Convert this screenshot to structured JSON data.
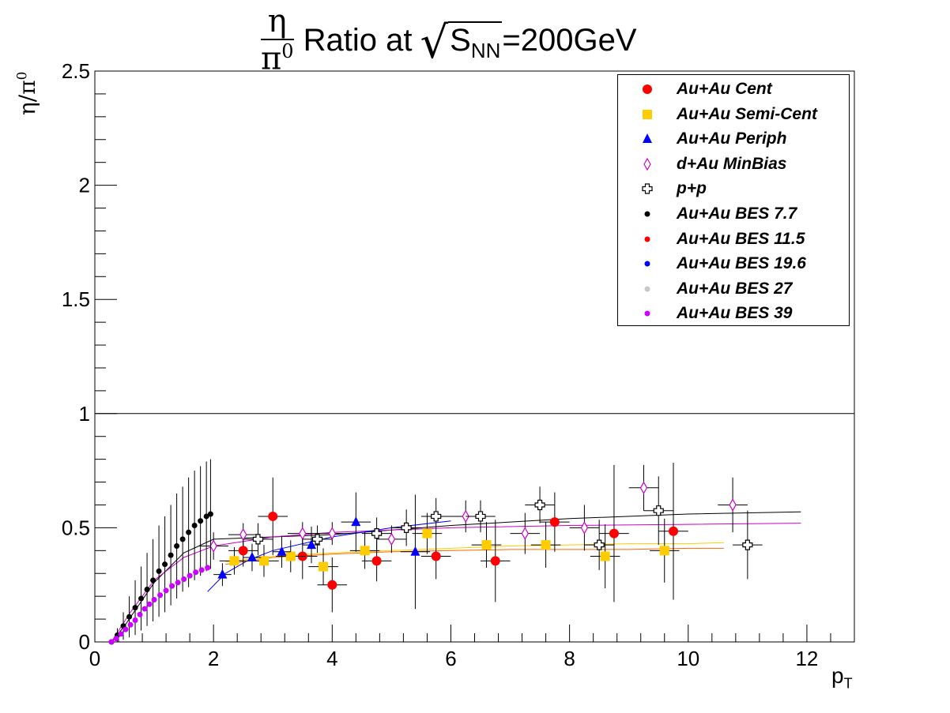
{
  "title": {
    "numerator": "η",
    "denominator": "π",
    "denominator_sup": "0",
    "text": "Ratio at",
    "radicand": "S",
    "radicand_sub": "NN",
    "energy": "=200GeV"
  },
  "axes": {
    "ylabel": "η/π",
    "ylabel_sup": "0",
    "xlabel": "p",
    "xlabel_sub": "T"
  },
  "chart_data": {
    "type": "scatter",
    "title": "η/π⁰ Ratio at √S_NN=200GeV",
    "xlabel": "p_T",
    "ylabel": "η/π⁰",
    "xlim": [
      0,
      12.8
    ],
    "ylim": [
      0,
      2.5
    ],
    "x_ticks": [
      0,
      2,
      4,
      6,
      8,
      10,
      12
    ],
    "y_ticks": [
      0,
      0.5,
      1,
      1.5,
      2,
      2.5
    ],
    "y_tick_labels": [
      "0",
      "0.5",
      "1",
      "1.5",
      "2",
      "2.5"
    ],
    "grid": false,
    "legend_position": "top-right",
    "reference_line": {
      "y": 1
    },
    "series": [
      {
        "name": "Au+Au Cent",
        "marker": "circle",
        "color": "#ff0000",
        "points": [
          {
            "x": 2.5,
            "y": 0.4,
            "xerr": 0.25,
            "yerr": 0.07
          },
          {
            "x": 3.0,
            "y": 0.55,
            "xerr": 0.25,
            "yerr": 0.17
          },
          {
            "x": 3.5,
            "y": 0.375,
            "xerr": 0.25,
            "yerr": 0.1
          },
          {
            "x": 4.0,
            "y": 0.25,
            "xerr": 0.25,
            "yerr": 0.12
          },
          {
            "x": 4.75,
            "y": 0.355,
            "xerr": 0.25,
            "yerr": 0.09
          },
          {
            "x": 5.75,
            "y": 0.375,
            "xerr": 0.25,
            "yerr": 0.1
          },
          {
            "x": 6.75,
            "y": 0.355,
            "xerr": 0.25,
            "yerr": 0.18
          },
          {
            "x": 7.75,
            "y": 0.525,
            "xerr": 0.25,
            "yerr": 0.13
          },
          {
            "x": 8.75,
            "y": 0.475,
            "xerr": 0.25,
            "yerr": 0.3
          },
          {
            "x": 9.75,
            "y": 0.485,
            "xerr": 0.25,
            "yerr": 0.3
          }
        ]
      },
      {
        "name": "Au+Au Semi-Cent",
        "marker": "square",
        "color": "#ffcc00",
        "points": [
          {
            "x": 2.35,
            "y": 0.355,
            "xerr": 0.25,
            "yerr": 0.06
          },
          {
            "x": 2.85,
            "y": 0.355,
            "xerr": 0.25,
            "yerr": 0.07
          },
          {
            "x": 3.3,
            "y": 0.375,
            "xerr": 0.25,
            "yerr": 0.07
          },
          {
            "x": 3.85,
            "y": 0.33,
            "xerr": 0.25,
            "yerr": 0.08
          },
          {
            "x": 4.55,
            "y": 0.4,
            "xerr": 0.25,
            "yerr": 0.08
          },
          {
            "x": 5.6,
            "y": 0.475,
            "xerr": 0.25,
            "yerr": 0.09
          },
          {
            "x": 6.6,
            "y": 0.425,
            "xerr": 0.25,
            "yerr": 0.1
          },
          {
            "x": 7.6,
            "y": 0.425,
            "xerr": 0.25,
            "yerr": 0.1
          },
          {
            "x": 8.6,
            "y": 0.375,
            "xerr": 0.25,
            "yerr": 0.14
          },
          {
            "x": 9.6,
            "y": 0.4,
            "xerr": 0.25,
            "yerr": 0.14
          }
        ]
      },
      {
        "name": "Au+Au Periph",
        "marker": "triangle",
        "color": "#0000ff",
        "points": [
          {
            "x": 2.15,
            "y": 0.295,
            "xerr": 0.15,
            "yerr": 0.05
          },
          {
            "x": 2.65,
            "y": 0.37,
            "xerr": 0.15,
            "yerr": 0.06
          },
          {
            "x": 3.15,
            "y": 0.395,
            "xerr": 0.15,
            "yerr": 0.07
          },
          {
            "x": 3.65,
            "y": 0.425,
            "xerr": 0.15,
            "yerr": 0.08
          },
          {
            "x": 4.4,
            "y": 0.525,
            "xerr": 0.25,
            "yerr": 0.13
          },
          {
            "x": 5.4,
            "y": 0.395,
            "xerr": 0.25,
            "yerr": 0.25
          }
        ]
      },
      {
        "name": "d+Au MinBias",
        "marker": "open-diamond",
        "color": "#cc00cc",
        "points": [
          {
            "x": 2.0,
            "y": 0.42,
            "xerr": 0.25,
            "yerr": 0.06
          },
          {
            "x": 2.5,
            "y": 0.47,
            "xerr": 0.25,
            "yerr": 0.05
          },
          {
            "x": 3.5,
            "y": 0.475,
            "xerr": 0.25,
            "yerr": 0.05
          },
          {
            "x": 4.0,
            "y": 0.475,
            "xerr": 0.25,
            "yerr": 0.05
          },
          {
            "x": 5.0,
            "y": 0.45,
            "xerr": 0.25,
            "yerr": 0.06
          },
          {
            "x": 6.25,
            "y": 0.55,
            "xerr": 0.25,
            "yerr": 0.07
          },
          {
            "x": 7.25,
            "y": 0.475,
            "xerr": 0.25,
            "yerr": 0.09
          },
          {
            "x": 8.25,
            "y": 0.5,
            "xerr": 0.25,
            "yerr": 0.1
          },
          {
            "x": 9.25,
            "y": 0.675,
            "xerr": 0.25,
            "yerr": 0.1
          },
          {
            "x": 10.75,
            "y": 0.6,
            "xerr": 0.25,
            "yerr": 0.12
          }
        ]
      },
      {
        "name": "p+p",
        "marker": "open-cross",
        "color": "#000000",
        "points": [
          {
            "x": 2.75,
            "y": 0.45,
            "xerr": 0.25,
            "yerr": 0.07
          },
          {
            "x": 3.75,
            "y": 0.45,
            "xerr": 0.25,
            "yerr": 0.06
          },
          {
            "x": 4.75,
            "y": 0.475,
            "xerr": 0.25,
            "yerr": 0.07
          },
          {
            "x": 5.25,
            "y": 0.5,
            "xerr": 0.25,
            "yerr": 0.08
          },
          {
            "x": 5.75,
            "y": 0.55,
            "xerr": 0.25,
            "yerr": 0.08
          },
          {
            "x": 6.5,
            "y": 0.55,
            "xerr": 0.25,
            "yerr": 0.07
          },
          {
            "x": 7.5,
            "y": 0.6,
            "xerr": 0.25,
            "yerr": 0.08
          },
          {
            "x": 8.5,
            "y": 0.425,
            "xerr": 0.25,
            "yerr": 0.11
          },
          {
            "x": 9.5,
            "y": 0.575,
            "xerr": 0.25,
            "yerr": 0.15
          },
          {
            "x": 11.0,
            "y": 0.425,
            "xerr": 0.25,
            "yerr": 0.15
          }
        ]
      },
      {
        "name": "Au+Au BES 7.7",
        "marker": "small-circle",
        "color": "#000000",
        "points": [
          {
            "x": 0.28,
            "y": 0.0,
            "yerr": 0.01
          },
          {
            "x": 0.38,
            "y": 0.03,
            "yerr": 0.03
          },
          {
            "x": 0.48,
            "y": 0.07,
            "yerr": 0.06
          },
          {
            "x": 0.58,
            "y": 0.11,
            "yerr": 0.09
          },
          {
            "x": 0.68,
            "y": 0.15,
            "yerr": 0.12
          },
          {
            "x": 0.78,
            "y": 0.19,
            "yerr": 0.14
          },
          {
            "x": 0.88,
            "y": 0.23,
            "yerr": 0.16
          },
          {
            "x": 0.98,
            "y": 0.27,
            "yerr": 0.18
          },
          {
            "x": 1.08,
            "y": 0.31,
            "yerr": 0.2
          },
          {
            "x": 1.18,
            "y": 0.34,
            "yerr": 0.21
          },
          {
            "x": 1.28,
            "y": 0.38,
            "yerr": 0.22
          },
          {
            "x": 1.38,
            "y": 0.42,
            "yerr": 0.23
          },
          {
            "x": 1.48,
            "y": 0.45,
            "yerr": 0.23
          },
          {
            "x": 1.58,
            "y": 0.48,
            "yerr": 0.24
          },
          {
            "x": 1.68,
            "y": 0.51,
            "yerr": 0.24
          },
          {
            "x": 1.78,
            "y": 0.53,
            "yerr": 0.24
          },
          {
            "x": 1.88,
            "y": 0.55,
            "yerr": 0.24
          },
          {
            "x": 1.95,
            "y": 0.56,
            "yerr": 0.24
          }
        ]
      },
      {
        "name": "Au+Au BES 11.5",
        "marker": "small-circle",
        "color": "#ff0000",
        "points": []
      },
      {
        "name": "Au+Au BES 19.6",
        "marker": "small-circle",
        "color": "#0000ff",
        "points": []
      },
      {
        "name": "Au+Au BES 27",
        "marker": "small-circle",
        "color": "#c8c8c8",
        "points": []
      },
      {
        "name": "Au+Au BES 39",
        "marker": "small-circle",
        "color": "#cc00ff",
        "points": [
          {
            "x": 0.28,
            "y": 0.0,
            "yerr": 0.01
          },
          {
            "x": 0.36,
            "y": 0.015,
            "yerr": 0.01
          },
          {
            "x": 0.44,
            "y": 0.035,
            "yerr": 0.01
          },
          {
            "x": 0.52,
            "y": 0.055,
            "yerr": 0.01
          },
          {
            "x": 0.6,
            "y": 0.075,
            "yerr": 0.01
          },
          {
            "x": 0.68,
            "y": 0.095,
            "yerr": 0.01
          },
          {
            "x": 0.76,
            "y": 0.12,
            "yerr": 0.01
          },
          {
            "x": 0.84,
            "y": 0.145,
            "yerr": 0.01
          },
          {
            "x": 0.92,
            "y": 0.165,
            "yerr": 0.01
          },
          {
            "x": 1.0,
            "y": 0.185,
            "yerr": 0.01
          },
          {
            "x": 1.1,
            "y": 0.205,
            "yerr": 0.01
          },
          {
            "x": 1.2,
            "y": 0.225,
            "yerr": 0.01
          },
          {
            "x": 1.3,
            "y": 0.245,
            "yerr": 0.01
          },
          {
            "x": 1.4,
            "y": 0.26,
            "yerr": 0.01
          },
          {
            "x": 1.5,
            "y": 0.275,
            "yerr": 0.01
          },
          {
            "x": 1.6,
            "y": 0.29,
            "yerr": 0.01
          },
          {
            "x": 1.7,
            "y": 0.305,
            "yerr": 0.01
          },
          {
            "x": 1.8,
            "y": 0.315,
            "yerr": 0.01
          },
          {
            "x": 1.9,
            "y": 0.325,
            "yerr": 0.01
          }
        ]
      }
    ],
    "fit_curves": [
      {
        "color": "#000000",
        "x": [
          0.28,
          0.5,
          1.0,
          1.5,
          2.0,
          3.0,
          4.0,
          5.0,
          6.0,
          8.0,
          10.0,
          11.9
        ],
        "y": [
          0.0,
          0.07,
          0.26,
          0.39,
          0.45,
          0.46,
          0.47,
          0.49,
          0.51,
          0.54,
          0.56,
          0.57
        ]
      },
      {
        "color": "#cc00cc",
        "x": [
          0.28,
          0.6,
          1.0,
          1.5,
          2.0,
          3.0,
          4.0,
          6.0,
          8.0,
          10.0,
          11.9
        ],
        "y": [
          0.0,
          0.13,
          0.27,
          0.37,
          0.42,
          0.46,
          0.48,
          0.5,
          0.51,
          0.515,
          0.52
        ]
      },
      {
        "color": "#0000ff",
        "x": [
          1.9,
          2.2,
          2.6,
          3.0,
          3.5,
          4.0,
          5.0,
          6.0
        ],
        "y": [
          0.22,
          0.3,
          0.36,
          0.4,
          0.43,
          0.46,
          0.5,
          0.53
        ]
      },
      {
        "color": "#ff6600",
        "x": [
          2.2,
          3.0,
          4.0,
          5.0,
          6.0,
          7.0,
          8.0,
          9.0,
          10.0,
          10.6
        ],
        "y": [
          0.34,
          0.37,
          0.385,
          0.395,
          0.4,
          0.405,
          0.405,
          0.405,
          0.41,
          0.41
        ]
      },
      {
        "color": "#ffcc00",
        "x": [
          2.2,
          3.0,
          4.0,
          5.0,
          6.0,
          7.0,
          8.0,
          9.0,
          10.0,
          10.6
        ],
        "y": [
          0.35,
          0.375,
          0.39,
          0.4,
          0.41,
          0.42,
          0.425,
          0.43,
          0.43,
          0.435
        ]
      }
    ]
  }
}
